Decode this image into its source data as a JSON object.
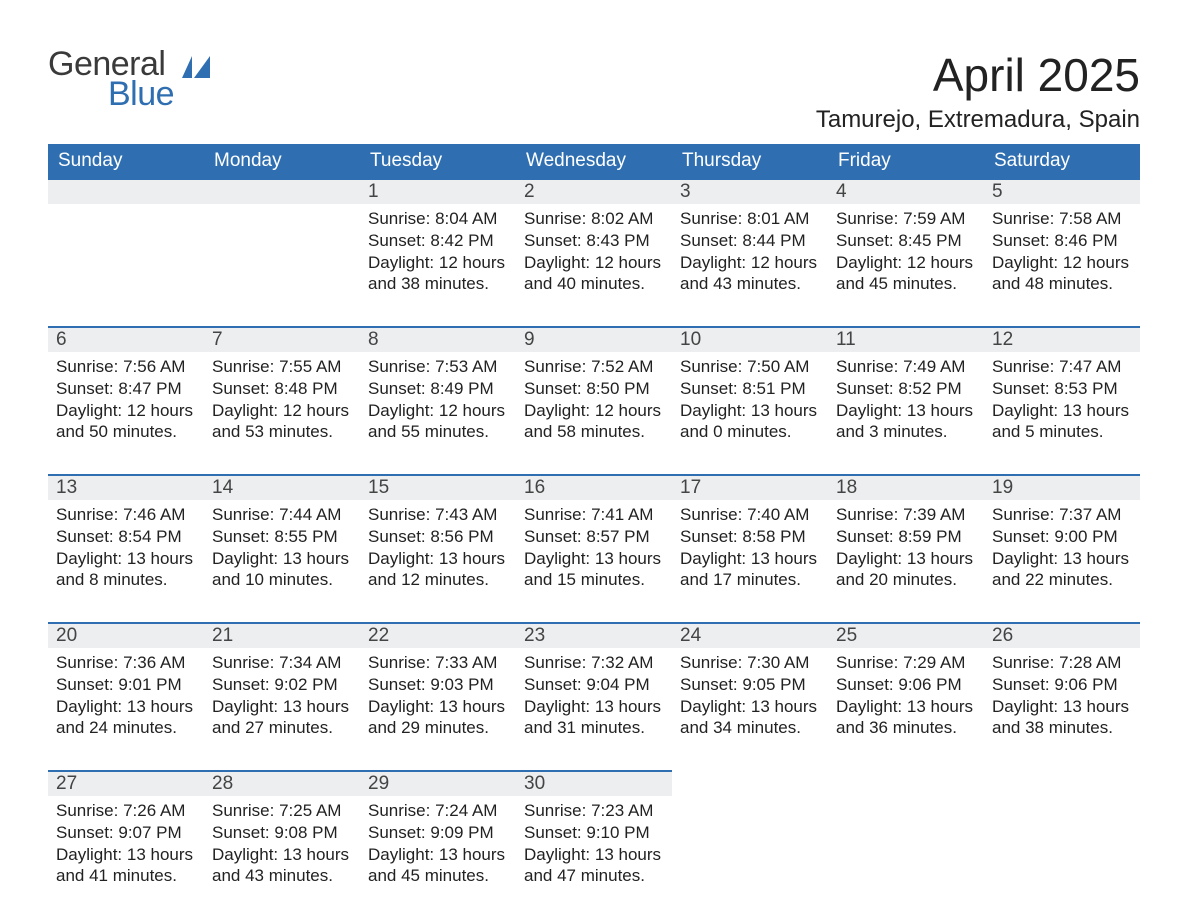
{
  "logo": {
    "word1": "General",
    "word2": "Blue",
    "icon_color": "#2f6fb1",
    "text1_color": "#3a3a3a"
  },
  "title": "April 2025",
  "location": "Tamurejo, Extremadura, Spain",
  "colors": {
    "header_bg": "#2f6fb1",
    "header_text": "#ffffff",
    "daynum_bg": "#eceeef",
    "daynum_border": "#2f6fb1",
    "body_text": "#222222",
    "page_bg": "#ffffff"
  },
  "typography": {
    "title_fontsize": 46,
    "location_fontsize": 24,
    "header_fontsize": 19,
    "daynum_fontsize": 19,
    "cell_fontsize": 17
  },
  "layout": {
    "columns": 7,
    "rows": 5,
    "first_day_column_index": 2
  },
  "day_headers": [
    "Sunday",
    "Monday",
    "Tuesday",
    "Wednesday",
    "Thursday",
    "Friday",
    "Saturday"
  ],
  "days": [
    {
      "n": 1,
      "sunrise": "8:04 AM",
      "sunset": "8:42 PM",
      "daylight": "12 hours and 38 minutes."
    },
    {
      "n": 2,
      "sunrise": "8:02 AM",
      "sunset": "8:43 PM",
      "daylight": "12 hours and 40 minutes."
    },
    {
      "n": 3,
      "sunrise": "8:01 AM",
      "sunset": "8:44 PM",
      "daylight": "12 hours and 43 minutes."
    },
    {
      "n": 4,
      "sunrise": "7:59 AM",
      "sunset": "8:45 PM",
      "daylight": "12 hours and 45 minutes."
    },
    {
      "n": 5,
      "sunrise": "7:58 AM",
      "sunset": "8:46 PM",
      "daylight": "12 hours and 48 minutes."
    },
    {
      "n": 6,
      "sunrise": "7:56 AM",
      "sunset": "8:47 PM",
      "daylight": "12 hours and 50 minutes."
    },
    {
      "n": 7,
      "sunrise": "7:55 AM",
      "sunset": "8:48 PM",
      "daylight": "12 hours and 53 minutes."
    },
    {
      "n": 8,
      "sunrise": "7:53 AM",
      "sunset": "8:49 PM",
      "daylight": "12 hours and 55 minutes."
    },
    {
      "n": 9,
      "sunrise": "7:52 AM",
      "sunset": "8:50 PM",
      "daylight": "12 hours and 58 minutes."
    },
    {
      "n": 10,
      "sunrise": "7:50 AM",
      "sunset": "8:51 PM",
      "daylight": "13 hours and 0 minutes."
    },
    {
      "n": 11,
      "sunrise": "7:49 AM",
      "sunset": "8:52 PM",
      "daylight": "13 hours and 3 minutes."
    },
    {
      "n": 12,
      "sunrise": "7:47 AM",
      "sunset": "8:53 PM",
      "daylight": "13 hours and 5 minutes."
    },
    {
      "n": 13,
      "sunrise": "7:46 AM",
      "sunset": "8:54 PM",
      "daylight": "13 hours and 8 minutes."
    },
    {
      "n": 14,
      "sunrise": "7:44 AM",
      "sunset": "8:55 PM",
      "daylight": "13 hours and 10 minutes."
    },
    {
      "n": 15,
      "sunrise": "7:43 AM",
      "sunset": "8:56 PM",
      "daylight": "13 hours and 12 minutes."
    },
    {
      "n": 16,
      "sunrise": "7:41 AM",
      "sunset": "8:57 PM",
      "daylight": "13 hours and 15 minutes."
    },
    {
      "n": 17,
      "sunrise": "7:40 AM",
      "sunset": "8:58 PM",
      "daylight": "13 hours and 17 minutes."
    },
    {
      "n": 18,
      "sunrise": "7:39 AM",
      "sunset": "8:59 PM",
      "daylight": "13 hours and 20 minutes."
    },
    {
      "n": 19,
      "sunrise": "7:37 AM",
      "sunset": "9:00 PM",
      "daylight": "13 hours and 22 minutes."
    },
    {
      "n": 20,
      "sunrise": "7:36 AM",
      "sunset": "9:01 PM",
      "daylight": "13 hours and 24 minutes."
    },
    {
      "n": 21,
      "sunrise": "7:34 AM",
      "sunset": "9:02 PM",
      "daylight": "13 hours and 27 minutes."
    },
    {
      "n": 22,
      "sunrise": "7:33 AM",
      "sunset": "9:03 PM",
      "daylight": "13 hours and 29 minutes."
    },
    {
      "n": 23,
      "sunrise": "7:32 AM",
      "sunset": "9:04 PM",
      "daylight": "13 hours and 31 minutes."
    },
    {
      "n": 24,
      "sunrise": "7:30 AM",
      "sunset": "9:05 PM",
      "daylight": "13 hours and 34 minutes."
    },
    {
      "n": 25,
      "sunrise": "7:29 AM",
      "sunset": "9:06 PM",
      "daylight": "13 hours and 36 minutes."
    },
    {
      "n": 26,
      "sunrise": "7:28 AM",
      "sunset": "9:06 PM",
      "daylight": "13 hours and 38 minutes."
    },
    {
      "n": 27,
      "sunrise": "7:26 AM",
      "sunset": "9:07 PM",
      "daylight": "13 hours and 41 minutes."
    },
    {
      "n": 28,
      "sunrise": "7:25 AM",
      "sunset": "9:08 PM",
      "daylight": "13 hours and 43 minutes."
    },
    {
      "n": 29,
      "sunrise": "7:24 AM",
      "sunset": "9:09 PM",
      "daylight": "13 hours and 45 minutes."
    },
    {
      "n": 30,
      "sunrise": "7:23 AM",
      "sunset": "9:10 PM",
      "daylight": "13 hours and 47 minutes."
    }
  ],
  "labels": {
    "sunrise": "Sunrise: ",
    "sunset": "Sunset: ",
    "daylight": "Daylight: "
  }
}
